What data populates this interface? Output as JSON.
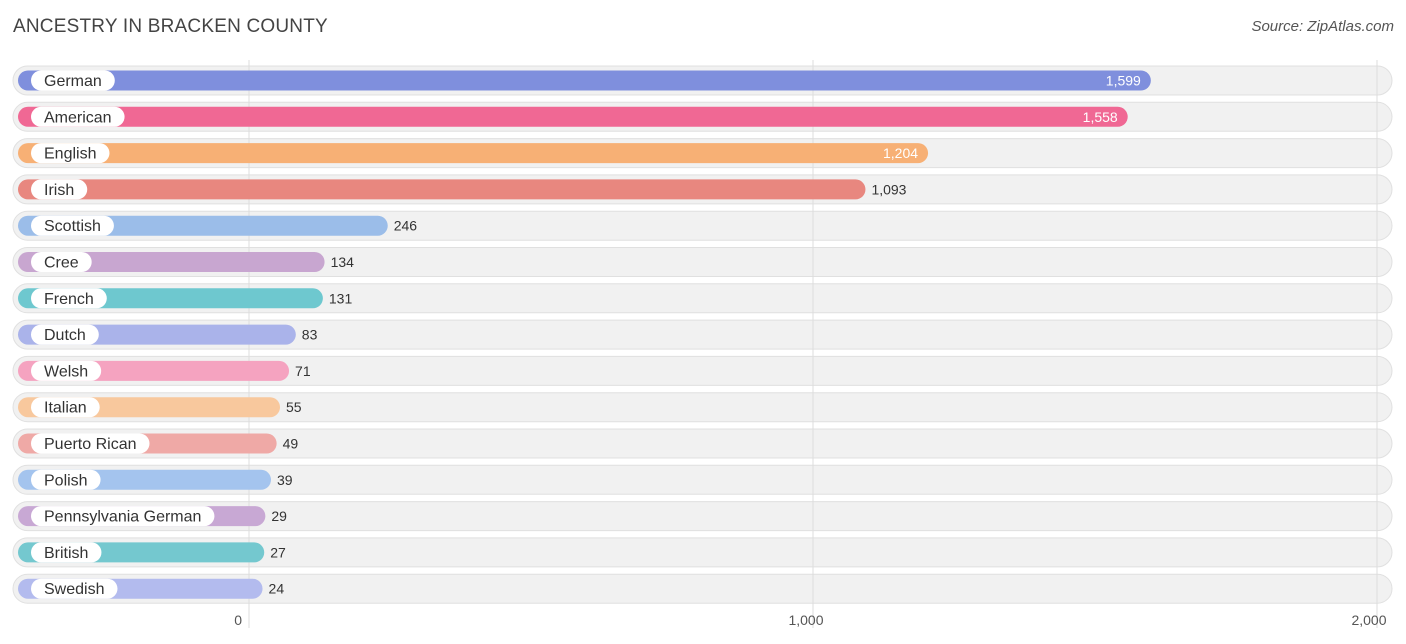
{
  "title": "ANCESTRY IN BRACKEN COUNTY",
  "source": "Source: ZipAtlas.com",
  "chart_data": {
    "type": "bar",
    "orientation": "horizontal",
    "title": "ANCESTRY IN BRACKEN COUNTY",
    "xlabel": "",
    "ylabel": "",
    "xlim": [
      0,
      2000
    ],
    "xticks": [
      0,
      1000,
      2000
    ],
    "xtick_labels": [
      "0",
      "1,000",
      "2,000"
    ],
    "grid": true,
    "categories": [
      "German",
      "American",
      "English",
      "Irish",
      "Scottish",
      "Cree",
      "French",
      "Dutch",
      "Welsh",
      "Italian",
      "Puerto Rican",
      "Polish",
      "Pennsylvania German",
      "British",
      "Swedish"
    ],
    "values": [
      1599,
      1558,
      1204,
      1093,
      246,
      134,
      131,
      83,
      71,
      55,
      49,
      39,
      29,
      27,
      24
    ],
    "value_labels": [
      "1,599",
      "1,558",
      "1,204",
      "1,093",
      "246",
      "134",
      "131",
      "83",
      "71",
      "55",
      "49",
      "39",
      "29",
      "27",
      "24"
    ],
    "colors": [
      "#7f8fdd",
      "#f06894",
      "#f7b075",
      "#e8877f",
      "#9bbde9",
      "#c8a6d0",
      "#6ec8cf",
      "#aab3ea",
      "#f5a3c0",
      "#f8c89d",
      "#efa9a6",
      "#a4c4ee",
      "#c8a8d4",
      "#74c8cf",
      "#b3bbee"
    ]
  }
}
